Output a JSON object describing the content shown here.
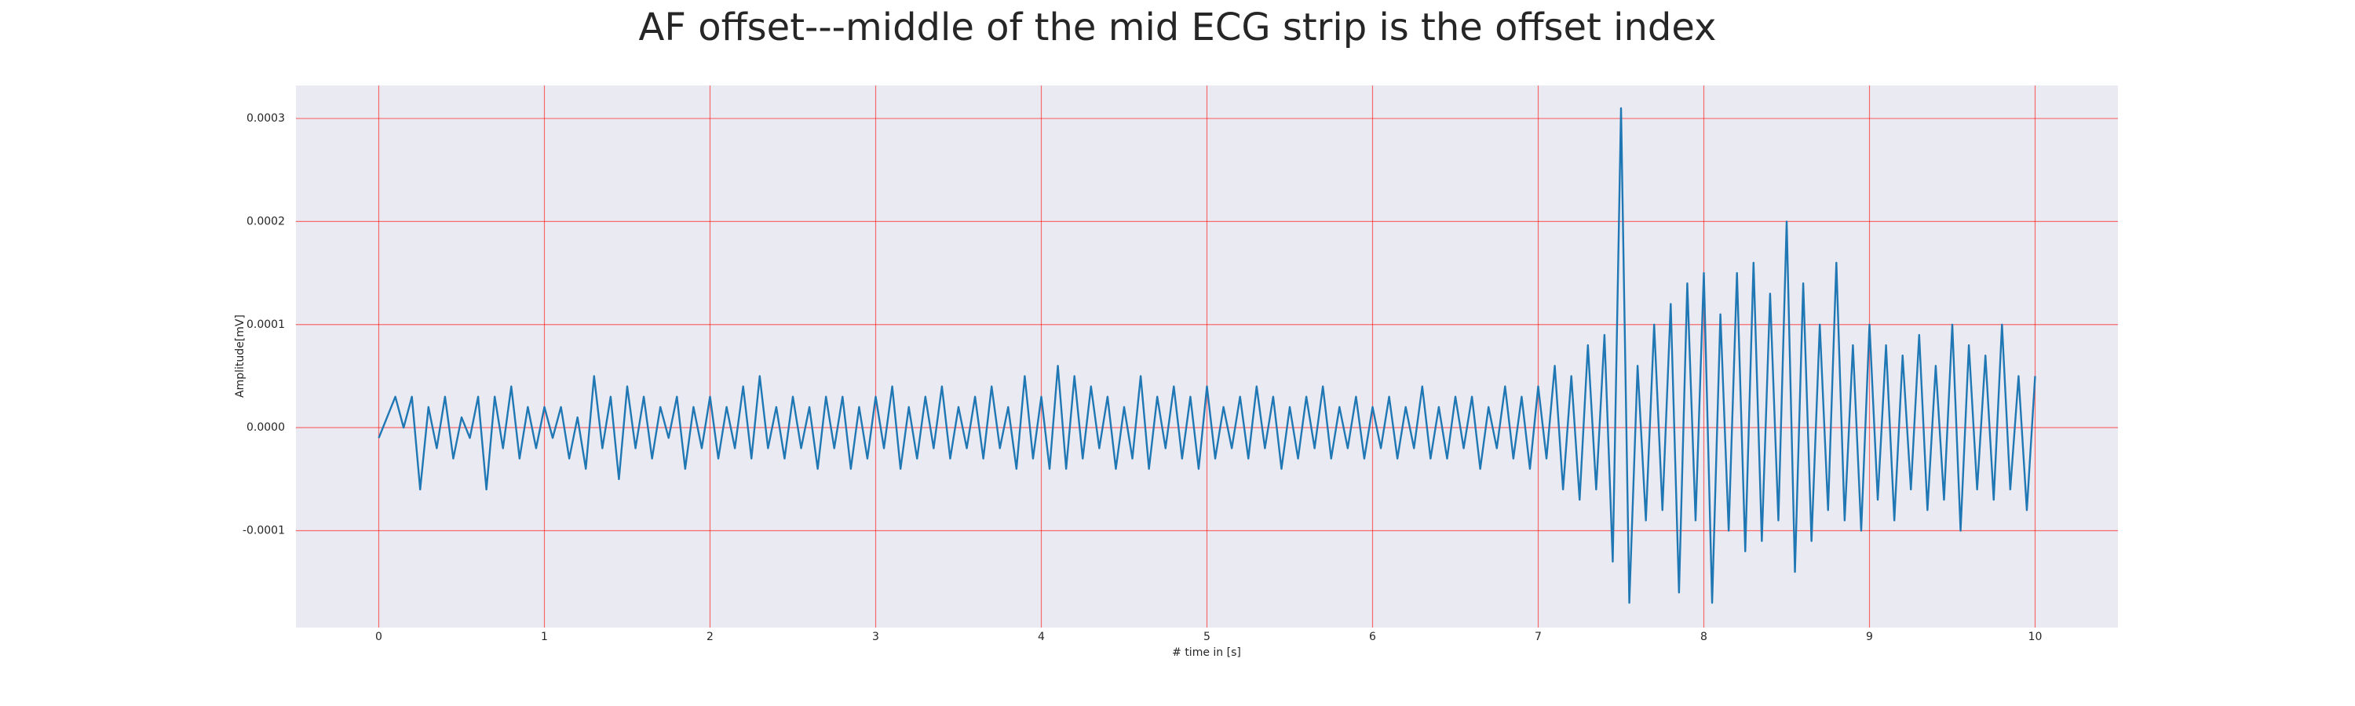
{
  "chart_data": {
    "type": "line",
    "title": "AF offset---middle of the mid ECG strip is the offset index",
    "xlabel": "# time in [s]",
    "ylabel": "Amplitude[mV]",
    "x": [
      0,
      0.05,
      0.1,
      0.15,
      0.2,
      0.25,
      0.3,
      0.35,
      0.4,
      0.45,
      0.5,
      0.55,
      0.6,
      0.65,
      0.7,
      0.75,
      0.8,
      0.85,
      0.9,
      0.95,
      1,
      1.05,
      1.1,
      1.15,
      1.2,
      1.25,
      1.3,
      1.35,
      1.4,
      1.45,
      1.5,
      1.55,
      1.6,
      1.65,
      1.7,
      1.75,
      1.8,
      1.85,
      1.9,
      1.95,
      2,
      2.05,
      2.1,
      2.15,
      2.2,
      2.25,
      2.3,
      2.35,
      2.4,
      2.45,
      2.5,
      2.55,
      2.6,
      2.65,
      2.7,
      2.75,
      2.8,
      2.85,
      2.9,
      2.95,
      3,
      3.05,
      3.1,
      3.15,
      3.2,
      3.25,
      3.3,
      3.35,
      3.4,
      3.45,
      3.5,
      3.55,
      3.6,
      3.65,
      3.7,
      3.75,
      3.8,
      3.85,
      3.9,
      3.95,
      4,
      4.05,
      4.1,
      4.15,
      4.2,
      4.25,
      4.3,
      4.35,
      4.4,
      4.45,
      4.5,
      4.55,
      4.6,
      4.65,
      4.7,
      4.75,
      4.8,
      4.85,
      4.9,
      4.95,
      5,
      5.05,
      5.1,
      5.15,
      5.2,
      5.25,
      5.3,
      5.35,
      5.4,
      5.45,
      5.5,
      5.55,
      5.6,
      5.65,
      5.7,
      5.75,
      5.8,
      5.85,
      5.9,
      5.95,
      6,
      6.05,
      6.1,
      6.15,
      6.2,
      6.25,
      6.3,
      6.35,
      6.4,
      6.45,
      6.5,
      6.55,
      6.6,
      6.65,
      6.7,
      6.75,
      6.8,
      6.85,
      6.9,
      6.95,
      7,
      7.05,
      7.1,
      7.15,
      7.2,
      7.25,
      7.3,
      7.35,
      7.4,
      7.45,
      7.5,
      7.55,
      7.6,
      7.65,
      7.7,
      7.75,
      7.8,
      7.85,
      7.9,
      7.95,
      8,
      8.05,
      8.1,
      8.15,
      8.2,
      8.25,
      8.3,
      8.35,
      8.4,
      8.45,
      8.5,
      8.55,
      8.6,
      8.65,
      8.7,
      8.75,
      8.8,
      8.85,
      8.9,
      8.95,
      9,
      9.05,
      9.1,
      9.15,
      9.2,
      9.25,
      9.3,
      9.35,
      9.4,
      9.45,
      9.5,
      9.55,
      9.6,
      9.65,
      9.7,
      9.75,
      9.8,
      9.85,
      9.9,
      9.95,
      10
    ],
    "series": [
      {
        "color": "#1f77b4",
        "values": [
          -1e-05,
          1e-05,
          3e-05,
          0,
          3e-05,
          -6e-05,
          2e-05,
          -2e-05,
          3e-05,
          -3e-05,
          1e-05,
          -1e-05,
          3e-05,
          -6e-05,
          3e-05,
          -2e-05,
          4e-05,
          -3e-05,
          2e-05,
          -2e-05,
          2e-05,
          -1e-05,
          2e-05,
          -3e-05,
          1e-05,
          -4e-05,
          5e-05,
          -2e-05,
          3e-05,
          -5e-05,
          4e-05,
          -2e-05,
          3e-05,
          -3e-05,
          2e-05,
          -1e-05,
          3e-05,
          -4e-05,
          2e-05,
          -2e-05,
          3e-05,
          -3e-05,
          2e-05,
          -2e-05,
          4e-05,
          -3e-05,
          5e-05,
          -2e-05,
          2e-05,
          -3e-05,
          3e-05,
          -2e-05,
          2e-05,
          -4e-05,
          3e-05,
          -2e-05,
          3e-05,
          -4e-05,
          2e-05,
          -3e-05,
          3e-05,
          -2e-05,
          4e-05,
          -4e-05,
          2e-05,
          -3e-05,
          3e-05,
          -2e-05,
          4e-05,
          -3e-05,
          2e-05,
          -2e-05,
          3e-05,
          -3e-05,
          4e-05,
          -2e-05,
          2e-05,
          -4e-05,
          5e-05,
          -3e-05,
          3e-05,
          -4e-05,
          6e-05,
          -4e-05,
          5e-05,
          -3e-05,
          4e-05,
          -2e-05,
          3e-05,
          -4e-05,
          2e-05,
          -3e-05,
          5e-05,
          -4e-05,
          3e-05,
          -2e-05,
          4e-05,
          -3e-05,
          3e-05,
          -4e-05,
          4e-05,
          -3e-05,
          2e-05,
          -2e-05,
          3e-05,
          -3e-05,
          4e-05,
          -2e-05,
          3e-05,
          -4e-05,
          2e-05,
          -3e-05,
          3e-05,
          -2e-05,
          4e-05,
          -3e-05,
          2e-05,
          -2e-05,
          3e-05,
          -3e-05,
          2e-05,
          -2e-05,
          3e-05,
          -3e-05,
          2e-05,
          -2e-05,
          4e-05,
          -3e-05,
          2e-05,
          -3e-05,
          3e-05,
          -2e-05,
          3e-05,
          -4e-05,
          2e-05,
          -2e-05,
          4e-05,
          -3e-05,
          3e-05,
          -4e-05,
          4e-05,
          -3e-05,
          6e-05,
          -6e-05,
          5e-05,
          -7e-05,
          8e-05,
          -6e-05,
          9e-05,
          -0.00013,
          0.00031,
          -0.00017,
          6e-05,
          -9e-05,
          0.0001,
          -8e-05,
          0.00012,
          -0.00016,
          0.00014,
          -9e-05,
          0.00015,
          -0.00017,
          0.00011,
          -0.0001,
          0.00015,
          -0.00012,
          0.00016,
          -0.00011,
          0.00013,
          -9e-05,
          0.0002,
          -0.00014,
          0.00014,
          -0.00011,
          0.0001,
          -8e-05,
          0.00016,
          -9e-05,
          8e-05,
          -0.0001,
          0.0001,
          -7e-05,
          8e-05,
          -9e-05,
          7e-05,
          -6e-05,
          9e-05,
          -8e-05,
          6e-05,
          -7e-05,
          0.0001,
          -0.0001,
          8e-05,
          -6e-05,
          7e-05,
          -7e-05,
          0.0001,
          -6e-05,
          5e-05,
          -8e-05,
          5e-05
        ]
      }
    ],
    "xlim": [
      -0.5,
      10.5
    ],
    "xticks": [
      0,
      1,
      2,
      3,
      4,
      5,
      6,
      7,
      8,
      9,
      10
    ],
    "ylim": [
      -0.000194,
      0.000332
    ],
    "yticks": [
      {
        "value": -0.0001,
        "label": "-0.0001"
      },
      {
        "value": 0,
        "label": "0.0000"
      },
      {
        "value": 0.0001,
        "label": "0.0001"
      },
      {
        "value": 0.0002,
        "label": "0.0002"
      },
      {
        "value": 0.0003,
        "label": "0.0003"
      }
    ],
    "grid": true,
    "grid_color": "#ff0000"
  }
}
